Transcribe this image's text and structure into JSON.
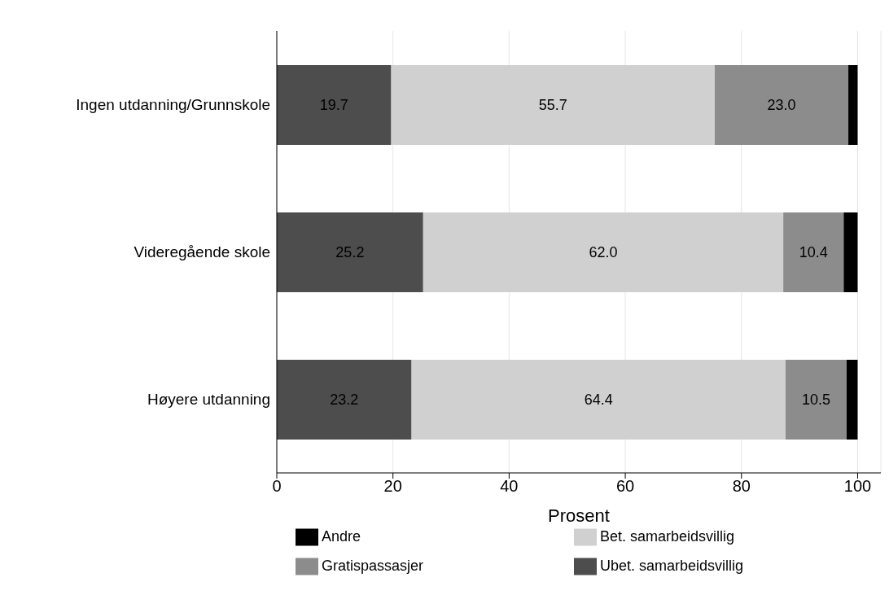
{
  "chart_data": {
    "type": "bar",
    "orientation": "horizontal",
    "stacked": true,
    "xlabel": "Prosent",
    "categories": [
      "Ingen utdanning/Grunnskole",
      "Videregående skole",
      "Høyere utdanning"
    ],
    "series": [
      {
        "name": "Ubet. samarbeidsvillig",
        "color": "#4d4d4d",
        "values": [
          19.7,
          25.2,
          23.2
        ],
        "value_labels": [
          "19.7",
          "25.2",
          "23.2"
        ]
      },
      {
        "name": "Bet. samarbeidsvillig",
        "color": "#d0d0d0",
        "values": [
          55.7,
          62.0,
          64.4
        ],
        "value_labels": [
          "55.7",
          "62.0",
          "64.4"
        ]
      },
      {
        "name": "Gratispassasjer",
        "color": "#8c8c8c",
        "values": [
          23.0,
          10.4,
          10.5
        ],
        "value_labels": [
          "23.0",
          "10.4",
          "10.5"
        ]
      },
      {
        "name": "Andre",
        "color": "#000000",
        "values": [
          1.6,
          2.4,
          1.9
        ],
        "value_labels": [
          null,
          null,
          null
        ]
      }
    ],
    "xlim": [
      0,
      104
    ],
    "xticks": [
      0,
      20,
      40,
      60,
      80,
      100
    ],
    "grid": "x",
    "legend": "bottom"
  }
}
